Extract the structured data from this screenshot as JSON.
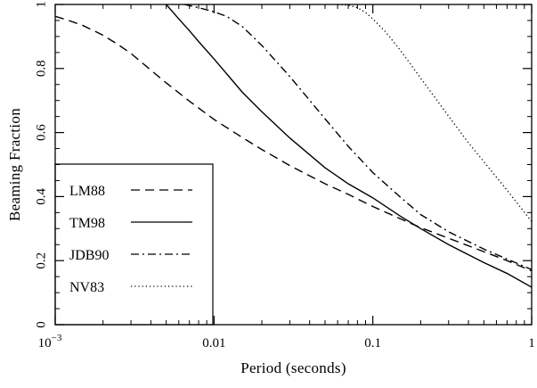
{
  "chart_data": {
    "type": "line",
    "title": "",
    "xlabel": "Period (seconds)",
    "ylabel": "Beaming Fraction",
    "xscale": "log",
    "xlim": [
      0.001,
      1
    ],
    "ylim": [
      0,
      1
    ],
    "grid": false,
    "legend_position": "bottom-left",
    "x_ticks": [
      {
        "value": 0.001,
        "base": "10",
        "exp": "−3"
      },
      {
        "value": 0.01,
        "label": "0.01"
      },
      {
        "value": 0.1,
        "label": "0.1"
      },
      {
        "value": 1,
        "label": "1"
      }
    ],
    "y_ticks": [
      {
        "value": 0,
        "label": "0"
      },
      {
        "value": 0.2,
        "label": "0.2"
      },
      {
        "value": 0.4,
        "label": "0.4"
      },
      {
        "value": 0.6,
        "label": "0.6"
      },
      {
        "value": 0.8,
        "label": "0.8"
      },
      {
        "value": 1,
        "label": "1"
      }
    ],
    "series": [
      {
        "name": "LM88",
        "dash": "dashed",
        "color": "#000000",
        "points": [
          [
            0.001,
            0.963
          ],
          [
            0.0012,
            0.951
          ],
          [
            0.0015,
            0.934
          ],
          [
            0.002,
            0.904
          ],
          [
            0.0025,
            0.874
          ],
          [
            0.003,
            0.847
          ],
          [
            0.004,
            0.795
          ],
          [
            0.005,
            0.755
          ],
          [
            0.007,
            0.698
          ],
          [
            0.01,
            0.641
          ],
          [
            0.015,
            0.585
          ],
          [
            0.02,
            0.547
          ],
          [
            0.03,
            0.497
          ],
          [
            0.05,
            0.44
          ],
          [
            0.07,
            0.407
          ],
          [
            0.1,
            0.369
          ],
          [
            0.15,
            0.33
          ],
          [
            0.2,
            0.303
          ],
          [
            0.3,
            0.27
          ],
          [
            0.5,
            0.228
          ],
          [
            0.7,
            0.2
          ],
          [
            1,
            0.168
          ]
        ]
      },
      {
        "name": "TM98",
        "dash": "solid",
        "color": "#000000",
        "points": [
          [
            0.005,
            1.0
          ],
          [
            0.006,
            0.955
          ],
          [
            0.007,
            0.918
          ],
          [
            0.008,
            0.884
          ],
          [
            0.01,
            0.83
          ],
          [
            0.015,
            0.727
          ],
          [
            0.02,
            0.665
          ],
          [
            0.03,
            0.583
          ],
          [
            0.05,
            0.49
          ],
          [
            0.07,
            0.44
          ],
          [
            0.1,
            0.396
          ],
          [
            0.15,
            0.338
          ],
          [
            0.2,
            0.3
          ],
          [
            0.3,
            0.25
          ],
          [
            0.5,
            0.194
          ],
          [
            0.7,
            0.16
          ],
          [
            1,
            0.117
          ]
        ]
      },
      {
        "name": "JDB90",
        "dash": "dashdot",
        "color": "#000000",
        "points": [
          [
            0.0065,
            1.0
          ],
          [
            0.008,
            0.99
          ],
          [
            0.01,
            0.977
          ],
          [
            0.012,
            0.963
          ],
          [
            0.015,
            0.932
          ],
          [
            0.02,
            0.872
          ],
          [
            0.03,
            0.775
          ],
          [
            0.05,
            0.643
          ],
          [
            0.07,
            0.557
          ],
          [
            0.1,
            0.475
          ],
          [
            0.15,
            0.397
          ],
          [
            0.2,
            0.344
          ],
          [
            0.3,
            0.29
          ],
          [
            0.5,
            0.236
          ],
          [
            0.7,
            0.205
          ],
          [
            1,
            0.172
          ]
        ]
      },
      {
        "name": "NV83",
        "dash": "dotted",
        "color": "#000000",
        "points": [
          [
            0.06,
            1.0
          ],
          [
            0.07,
            0.998
          ],
          [
            0.08,
            0.99
          ],
          [
            0.09,
            0.975
          ],
          [
            0.1,
            0.955
          ],
          [
            0.12,
            0.915
          ],
          [
            0.15,
            0.855
          ],
          [
            0.2,
            0.77
          ],
          [
            0.3,
            0.651
          ],
          [
            0.4,
            0.568
          ],
          [
            0.5,
            0.509
          ],
          [
            0.7,
            0.42
          ],
          [
            1,
            0.322
          ]
        ]
      }
    ]
  }
}
